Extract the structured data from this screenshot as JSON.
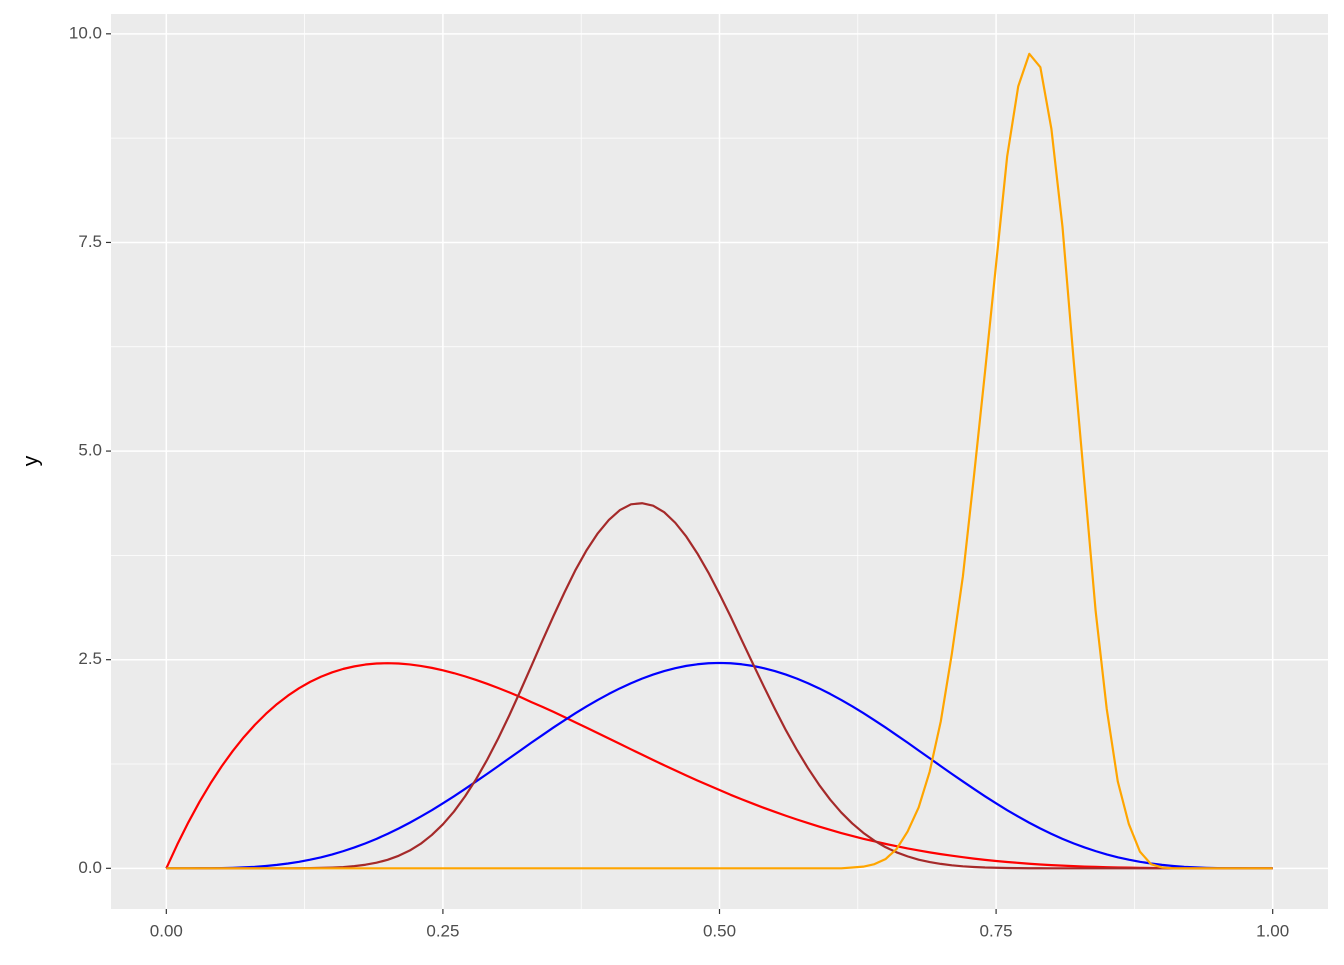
{
  "chart_data": {
    "type": "line",
    "y_label": "y",
    "x": [
      0,
      0.01,
      0.02,
      0.03,
      0.04,
      0.05,
      0.06,
      0.07,
      0.08,
      0.09,
      0.1,
      0.11,
      0.12,
      0.13,
      0.14,
      0.15,
      0.16,
      0.17,
      0.18,
      0.19,
      0.2,
      0.21,
      0.22,
      0.23,
      0.24,
      0.25,
      0.26,
      0.27,
      0.28,
      0.29,
      0.3,
      0.31,
      0.32,
      0.33,
      0.34,
      0.35,
      0.36,
      0.37,
      0.38,
      0.39,
      0.4,
      0.41,
      0.42,
      0.43,
      0.44,
      0.45,
      0.46,
      0.47,
      0.48,
      0.49,
      0.5,
      0.51,
      0.52,
      0.53,
      0.54,
      0.55,
      0.56,
      0.57,
      0.58,
      0.59,
      0.6,
      0.61,
      0.62,
      0.63,
      0.64,
      0.65,
      0.66,
      0.67,
      0.68,
      0.69,
      0.7,
      0.71,
      0.72,
      0.73,
      0.74,
      0.75,
      0.76,
      0.77,
      0.78,
      0.79,
      0.8,
      0.81,
      0.82,
      0.83,
      0.84,
      0.85,
      0.86,
      0.87,
      0.88,
      0.89,
      0.9,
      0.91,
      0.92,
      0.93,
      0.94,
      0.95,
      0.96,
      0.97,
      0.98,
      0.99,
      1
    ],
    "series": [
      {
        "color": "#ff0000",
        "values": [
          0,
          0.288,
          0.553,
          0.797,
          1.019,
          1.222,
          1.405,
          1.571,
          1.719,
          1.851,
          1.968,
          2.07,
          2.159,
          2.234,
          2.297,
          2.349,
          2.39,
          2.42,
          2.442,
          2.454,
          2.458,
          2.454,
          2.443,
          2.425,
          2.402,
          2.373,
          2.339,
          2.3,
          2.257,
          2.211,
          2.161,
          2.108,
          2.053,
          1.992,
          1.935,
          1.874,
          1.812,
          1.748,
          1.685,
          1.62,
          1.555,
          1.491,
          1.426,
          1.362,
          1.298,
          1.235,
          1.173,
          1.113,
          1.053,
          0.995,
          0.938,
          0.881,
          0.828,
          0.776,
          0.725,
          0.677,
          0.63,
          0.585,
          0.542,
          0.5,
          0.461,
          0.423,
          0.388,
          0.354,
          0.323,
          0.293,
          0.265,
          0.238,
          0.214,
          0.191,
          0.17,
          0.151,
          0.133,
          0.116,
          0.101,
          0.088,
          0.076,
          0.065,
          0.055,
          0.046,
          0.038,
          0.032,
          0.026,
          0.021,
          0.017,
          0.013,
          0.01,
          0.008,
          0.006,
          0.004,
          0.003,
          0.002,
          0.001,
          0.001,
          0,
          0,
          0,
          0,
          0,
          0,
          0
        ]
      },
      {
        "color": "#0000ff",
        "values": [
          0,
          0,
          0,
          0.001,
          0.001,
          0.003,
          0.006,
          0.011,
          0.018,
          0.028,
          0.041,
          0.058,
          0.078,
          0.103,
          0.132,
          0.166,
          0.206,
          0.25,
          0.299,
          0.353,
          0.413,
          0.477,
          0.546,
          0.62,
          0.697,
          0.779,
          0.863,
          0.951,
          1.041,
          1.132,
          1.225,
          1.319,
          1.412,
          1.506,
          1.597,
          1.688,
          1.775,
          1.86,
          1.941,
          2.018,
          2.09,
          2.157,
          2.218,
          2.273,
          2.322,
          2.364,
          2.398,
          2.426,
          2.445,
          2.457,
          2.461,
          2.457,
          2.445,
          2.426,
          2.398,
          2.364,
          2.322,
          2.273,
          2.218,
          2.157,
          2.09,
          2.018,
          1.941,
          1.86,
          1.775,
          1.688,
          1.597,
          1.506,
          1.412,
          1.319,
          1.225,
          1.132,
          1.041,
          0.951,
          0.863,
          0.779,
          0.697,
          0.62,
          0.546,
          0.477,
          0.413,
          0.353,
          0.299,
          0.25,
          0.206,
          0.166,
          0.132,
          0.103,
          0.078,
          0.058,
          0.041,
          0.028,
          0.018,
          0.011,
          0.006,
          0.003,
          0.001,
          0.001,
          0,
          0,
          0
        ]
      },
      {
        "color": "#a52a2a",
        "values": [
          0,
          0,
          0,
          0,
          0,
          0,
          0,
          0,
          0,
          0,
          0,
          0,
          0.001,
          0.002,
          0.005,
          0.009,
          0.015,
          0.026,
          0.043,
          0.067,
          0.102,
          0.15,
          0.213,
          0.295,
          0.4,
          0.527,
          0.68,
          0.862,
          1.068,
          1.301,
          1.557,
          1.833,
          2.125,
          2.425,
          2.729,
          3.025,
          3.31,
          3.579,
          3.815,
          4.015,
          4.175,
          4.293,
          4.362,
          4.375,
          4.345,
          4.268,
          4.141,
          3.975,
          3.773,
          3.543,
          3.287,
          3.019,
          2.737,
          2.457,
          2.181,
          1.912,
          1.655,
          1.418,
          1.2,
          1.001,
          0.824,
          0.67,
          0.538,
          0.425,
          0.331,
          0.254,
          0.192,
          0.143,
          0.104,
          0.075,
          0.053,
          0.036,
          0.024,
          0.016,
          0.01,
          0.007,
          0.004,
          0.002,
          0.001,
          0.001,
          0,
          0,
          0,
          0,
          0,
          0,
          0,
          0,
          0,
          0,
          0,
          0,
          0,
          0,
          0,
          0,
          0,
          0,
          0,
          0,
          0
        ]
      },
      {
        "color": "#ffa500",
        "values": [
          0,
          0,
          0,
          0,
          0,
          0,
          0,
          0,
          0,
          0,
          0,
          0,
          0,
          0,
          0,
          0,
          0,
          0,
          0,
          0,
          0,
          0,
          0,
          0,
          0,
          0,
          0,
          0,
          0,
          0,
          0,
          0,
          0,
          0,
          0,
          0,
          0,
          0,
          0,
          0,
          0,
          0,
          0,
          0,
          0,
          0,
          0,
          0,
          0,
          0,
          0,
          0,
          0,
          0,
          0,
          0,
          0,
          0,
          0,
          0,
          0,
          0,
          0.01,
          0.02,
          0.05,
          0.11,
          0.23,
          0.44,
          0.73,
          1.16,
          1.76,
          2.57,
          3.5,
          4.7,
          5.95,
          7.24,
          8.53,
          9.37,
          9.76,
          9.6,
          8.86,
          7.69,
          6.1,
          4.6,
          3.08,
          1.91,
          1.04,
          0.53,
          0.2,
          0.05,
          0.01,
          0,
          0,
          0,
          0,
          0,
          0,
          0,
          0,
          0,
          0
        ]
      }
    ],
    "xlim": [
      -0.05,
      1.05
    ],
    "ylim": [
      -0.4875,
      10.2375
    ],
    "xticks": [
      {
        "value": 0,
        "label": "0.00"
      },
      {
        "value": 0.25,
        "label": "0.25"
      },
      {
        "value": 0.5,
        "label": "0.50"
      },
      {
        "value": 0.75,
        "label": "0.75"
      },
      {
        "value": 1,
        "label": "1.00"
      }
    ],
    "yticks": [
      {
        "value": 0,
        "label": "0.0"
      },
      2.5,
      {
        "value": 5,
        "label": "5.0"
      },
      7.5,
      {
        "value": 10,
        "label": "10.0"
      }
    ],
    "grid": true,
    "minor_grid": true
  }
}
